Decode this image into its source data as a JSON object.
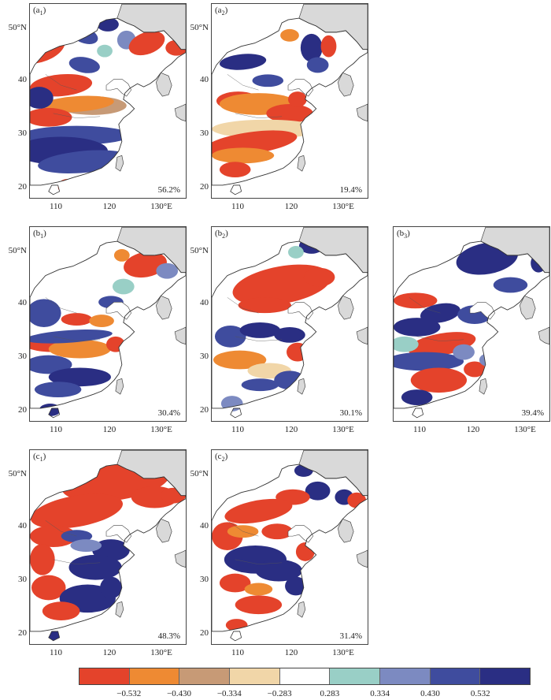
{
  "panels": [
    {
      "id": "a1",
      "letter": "a",
      "index": "1",
      "percent": "56.2%",
      "pattern": "a1",
      "show_y": true
    },
    {
      "id": "a2",
      "letter": "a",
      "index": "2",
      "percent": "19.4%",
      "pattern": "a2",
      "show_y": true
    },
    {
      "id": "b1",
      "letter": "b",
      "index": "1",
      "percent": "30.4%",
      "pattern": "b1",
      "show_y": true
    },
    {
      "id": "b2",
      "letter": "b",
      "index": "2",
      "percent": "30.1%",
      "pattern": "b2",
      "show_y": true
    },
    {
      "id": "b3",
      "letter": "b",
      "index": "3",
      "percent": "39.4%",
      "pattern": "b3",
      "show_y": false
    },
    {
      "id": "c1",
      "letter": "c",
      "index": "1",
      "percent": "48.3%",
      "pattern": "c1",
      "show_y": true
    },
    {
      "id": "c2",
      "letter": "c",
      "index": "2",
      "percent": "31.4%",
      "pattern": "c2",
      "show_y": true
    }
  ],
  "axes": {
    "y_ticks": [
      "50°N",
      "40",
      "30",
      "20"
    ],
    "x_ticks": [
      "110",
      "120",
      "130°E"
    ]
  },
  "colorbar": {
    "colors": [
      "#e4432b",
      "#ee8a33",
      "#c79a76",
      "#f1d6a8",
      "#ffffff",
      "#99cfc6",
      "#7c8ac1",
      "#3f4c9e",
      "#2a2e83"
    ],
    "labels": [
      "−0.532",
      "−0.430",
      "−0.334",
      "−0.283",
      "0.283",
      "0.334",
      "0.430",
      "0.532"
    ]
  }
}
